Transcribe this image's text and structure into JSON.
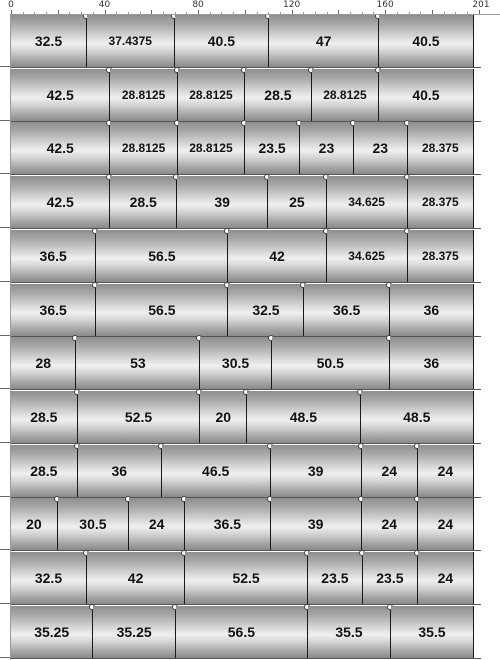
{
  "ruler": {
    "total": 201,
    "labels": [
      "0",
      "40",
      "80",
      "120",
      "160",
      "201"
    ],
    "label_values": [
      0,
      40,
      80,
      120,
      160,
      201
    ]
  },
  "rows": [
    [
      32.5,
      37.4375,
      40.5,
      47,
      40.5
    ],
    [
      42.5,
      28.8125,
      28.8125,
      28.5,
      28.8125,
      40.5
    ],
    [
      42.5,
      28.8125,
      28.8125,
      23.5,
      23,
      23,
      28.375
    ],
    [
      42.5,
      28.5,
      39,
      25,
      34.625,
      28.375
    ],
    [
      36.5,
      56.5,
      42,
      34.625,
      28.375
    ],
    [
      36.5,
      56.5,
      32.5,
      36.5,
      36
    ],
    [
      28,
      53,
      30.5,
      50.5,
      36
    ],
    [
      28.5,
      52.5,
      20,
      48.5,
      48.5
    ],
    [
      28.5,
      36,
      46.5,
      39,
      24,
      24
    ],
    [
      20,
      30.5,
      24,
      36.5,
      39,
      24,
      24
    ],
    [
      32.5,
      42,
      52.5,
      23.5,
      23.5,
      24
    ],
    [
      35.25,
      35.25,
      56.5,
      35.5,
      35.5
    ]
  ]
}
